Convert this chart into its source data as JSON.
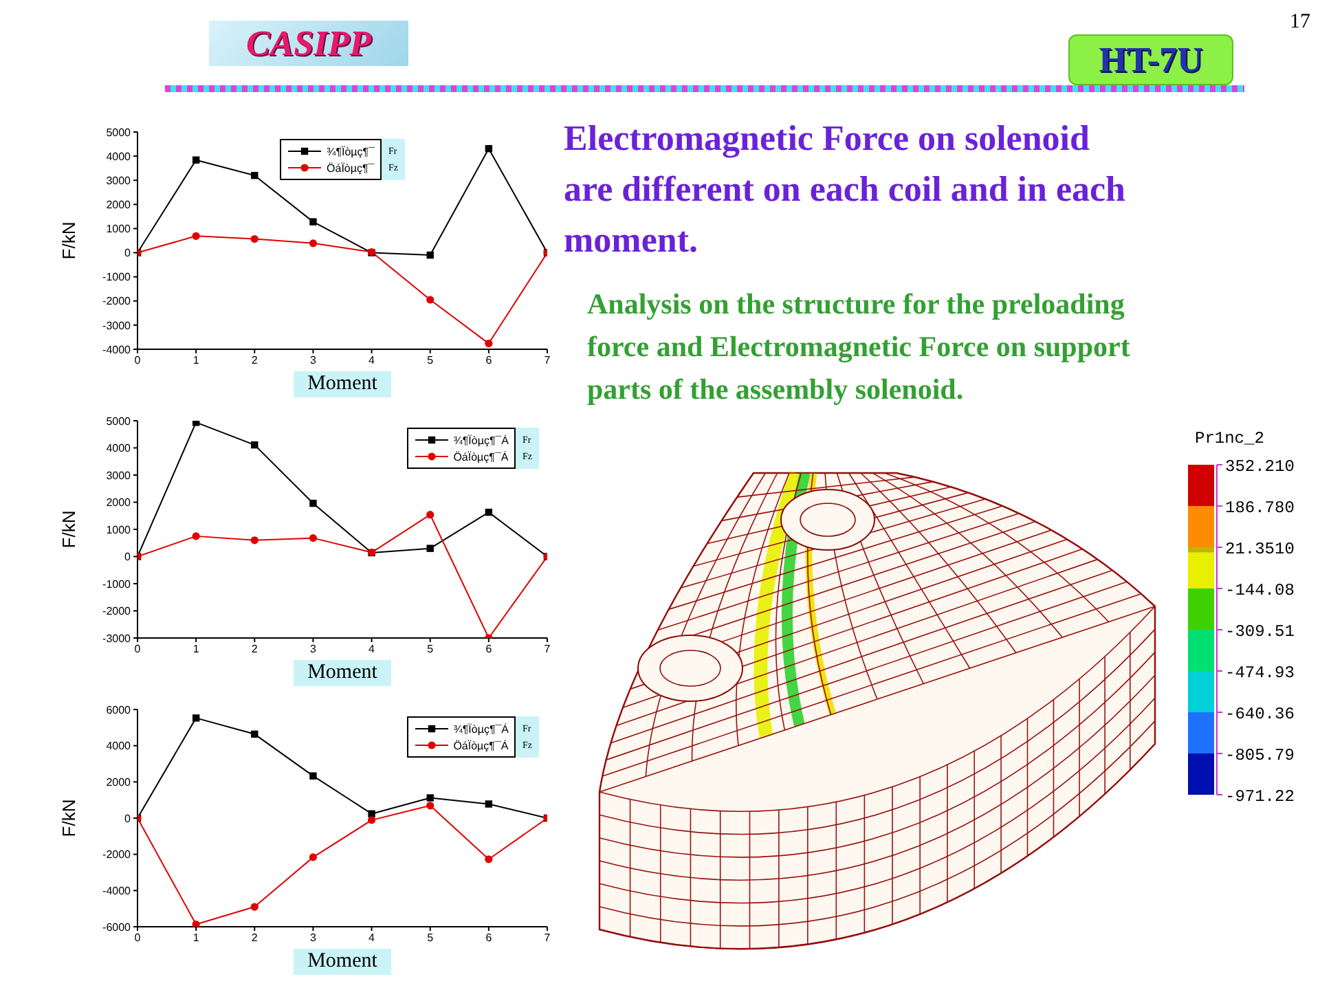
{
  "chart_data": [
    {
      "type": "line",
      "xlabel": "Moment",
      "ylabel": "F/kN",
      "x": [
        0,
        1,
        2,
        3,
        4,
        5,
        6,
        7
      ],
      "xlim": [
        0,
        7
      ],
      "xticks": [
        0,
        1,
        2,
        3,
        4,
        5,
        6,
        7
      ],
      "ylim": [
        -4000,
        5000
      ],
      "yticks": [
        -4000,
        -3000,
        -2000,
        -1000,
        0,
        1000,
        2000,
        3000,
        4000,
        5000
      ],
      "series": [
        {
          "name": "¾¶Ïòµç¶¯",
          "color": "#000000",
          "marker": "square",
          "values": [
            0,
            3840,
            3200,
            1280,
            0,
            -100,
            4310,
            0
          ]
        },
        {
          "name": "ÖáÏòµç¶¯",
          "color": "#e00000",
          "marker": "circle",
          "values": [
            0,
            690,
            570,
            390,
            30,
            -1950,
            -3760,
            0
          ]
        }
      ],
      "legend": "top",
      "line_style": "solid",
      "annotations": [
        "Fr",
        "Fz"
      ]
    },
    {
      "type": "line",
      "xlabel": "Moment",
      "ylabel": "F/kN",
      "x": [
        0,
        1,
        2,
        3,
        4,
        5,
        6,
        7
      ],
      "xlim": [
        0,
        7
      ],
      "xticks": [
        0,
        1,
        2,
        3,
        4,
        5,
        6,
        7
      ],
      "ylim": [
        -3000,
        5000
      ],
      "yticks": [
        -3000,
        -2000,
        -1000,
        0,
        1000,
        2000,
        3000,
        4000,
        5000
      ],
      "series": [
        {
          "name": "¾¶Ïòµç¶¯Á",
          "color": "#000000",
          "marker": "square",
          "values": [
            0,
            4940,
            4110,
            1960,
            140,
            300,
            1630,
            0
          ]
        },
        {
          "name": "ÖáÏòµç¶¯Á",
          "color": "#e00000",
          "marker": "circle",
          "values": [
            0,
            750,
            600,
            680,
            150,
            1540,
            -3000,
            0
          ]
        }
      ],
      "legend": "top right",
      "line_style": "solid",
      "annotations": [
        "Fr",
        "Fz"
      ]
    },
    {
      "type": "line",
      "xlabel": "Moment",
      "ylabel": "F/kN",
      "x": [
        0,
        1,
        2,
        3,
        4,
        5,
        6,
        7
      ],
      "xlim": [
        0,
        7
      ],
      "xticks": [
        0,
        1,
        2,
        3,
        4,
        5,
        6,
        7
      ],
      "ylim": [
        -6000,
        6000
      ],
      "yticks": [
        -6000,
        -4000,
        -2000,
        0,
        2000,
        4000,
        6000
      ],
      "series": [
        {
          "name": "¾¶Ïòµç¶¯Á",
          "color": "#000000",
          "marker": "square",
          "values": [
            0,
            5530,
            4640,
            2330,
            240,
            1120,
            780,
            0
          ]
        },
        {
          "name": "ÖáÏòµç¶¯Á",
          "color": "#e00000",
          "marker": "circle",
          "values": [
            0,
            -5870,
            -4900,
            -2160,
            -110,
            690,
            -2270,
            0
          ]
        }
      ],
      "legend": "top right",
      "line_style": "solid",
      "annotations": [
        "Fr",
        "Fz"
      ]
    },
    {
      "type": "other",
      "annotations": [
        "CASIPP",
        "HT-7U",
        "17"
      ]
    },
    {
      "type": "other",
      "title": "Electromagnetic Force on solenoid\nare different on each coil and in each\nmoment.",
      "subtitle": "Analysis on the structure for the preloading\nforce and Electromagnetic Force on support\nparts of the assembly solenoid."
    },
    {
      "type": "bar",
      "title": "Pr1nc_2",
      "categories": [
        null
      ],
      "stacked": true,
      "ylim": [
        -971.22,
        352.21
      ],
      "yticks": [
        -971.22,
        -805.79,
        -640.36,
        -474.93,
        -309.51,
        -144.08,
        {
          "value": 21.351,
          "label": "21.3510"
        },
        {
          "value": 186.78,
          "label": "186.780"
        },
        {
          "value": 352.21,
          "label": "352.210"
        }
      ],
      "series": [
        {
          "color": "#c0b400",
          "values": [
            21.351
          ]
        },
        {
          "color": "#ff8c00",
          "values": [
            165.429
          ]
        },
        {
          "color": "#d00000",
          "values": [
            165.43
          ]
        },
        {
          "color": "#e8f000",
          "values": [
            -144.08
          ]
        },
        {
          "color": "#40d000",
          "values": [
            -165.43
          ]
        },
        {
          "color": "#00e070",
          "values": [
            -165.42
          ]
        },
        {
          "color": "#00d0d8",
          "values": [
            -165.43
          ]
        },
        {
          "color": "#2070ff",
          "values": [
            -165.43
          ]
        },
        {
          "color": "#0010b0",
          "values": [
            -165.43
          ]
        }
      ]
    }
  ]
}
